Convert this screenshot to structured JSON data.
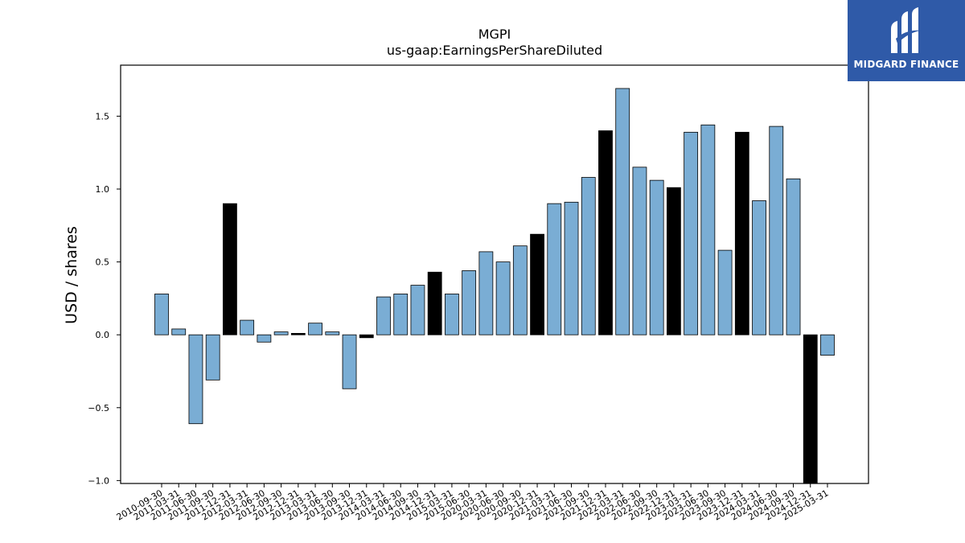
{
  "chart_data": {
    "type": "bar",
    "title": "MGPI",
    "subtitle": "us-gaap:EarningsPerShareDiluted",
    "xlabel": "",
    "ylabel": "USD / shares",
    "ylim": [
      -1.02,
      1.85
    ],
    "yticks": [
      -1.0,
      -0.5,
      0.0,
      0.5,
      1.0,
      1.5
    ],
    "ytick_labels": [
      "−1.0",
      "−0.5",
      "0.0",
      "0.5",
      "1.0",
      "1.5"
    ],
    "grid": false,
    "colors": {
      "quarterly": "#7aadd4",
      "annual": "#000000",
      "edge": "#000000"
    },
    "categories": [
      "2010-09-30",
      "2011-03-31",
      "2011-06-30",
      "2011-09-30",
      "2011-12-31",
      "2012-03-31",
      "2012-06-30",
      "2012-09-30",
      "2012-12-31",
      "2013-03-31",
      "2013-06-30",
      "2013-09-30",
      "2013-12-31",
      "2014-03-31",
      "2014-06-30",
      "2014-09-30",
      "2014-12-31",
      "2015-03-31",
      "2015-06-30",
      "2020-03-31",
      "2020-06-30",
      "2020-09-30",
      "2020-12-31",
      "2021-03-31",
      "2021-06-30",
      "2021-09-30",
      "2021-12-31",
      "2022-03-31",
      "2022-06-30",
      "2022-09-30",
      "2022-12-31",
      "2023-03-31",
      "2023-06-30",
      "2023-09-30",
      "2023-12-31",
      "2024-03-31",
      "2024-06-30",
      "2024-09-30",
      "2024-12-31",
      "2025-03-31"
    ],
    "series": [
      {
        "values": [
          0.28,
          0.04,
          -0.61,
          -0.31,
          0.9,
          0.1,
          -0.05,
          0.02,
          0.01,
          0.08,
          0.02,
          -0.37,
          -0.02,
          0.26,
          0.28,
          0.34,
          0.43,
          0.28,
          0.44,
          0.57,
          0.5,
          0.61,
          0.69,
          0.9,
          0.91,
          1.08,
          1.4,
          1.69,
          1.15,
          1.06,
          1.01,
          1.39,
          1.44,
          0.58,
          1.39,
          0.92,
          1.43,
          1.07,
          -1.02,
          -0.14
        ],
        "bar_color_key": [
          "q",
          "q",
          "q",
          "q",
          "a",
          "q",
          "q",
          "q",
          "a",
          "q",
          "q",
          "q",
          "a",
          "q",
          "q",
          "q",
          "a",
          "q",
          "q",
          "q",
          "q",
          "q",
          "a",
          "q",
          "q",
          "q",
          "a",
          "q",
          "q",
          "q",
          "a",
          "q",
          "q",
          "q",
          "a",
          "q",
          "q",
          "q",
          "a",
          "q"
        ]
      }
    ]
  },
  "logo": {
    "text": "MIDGARD FINANCE"
  }
}
